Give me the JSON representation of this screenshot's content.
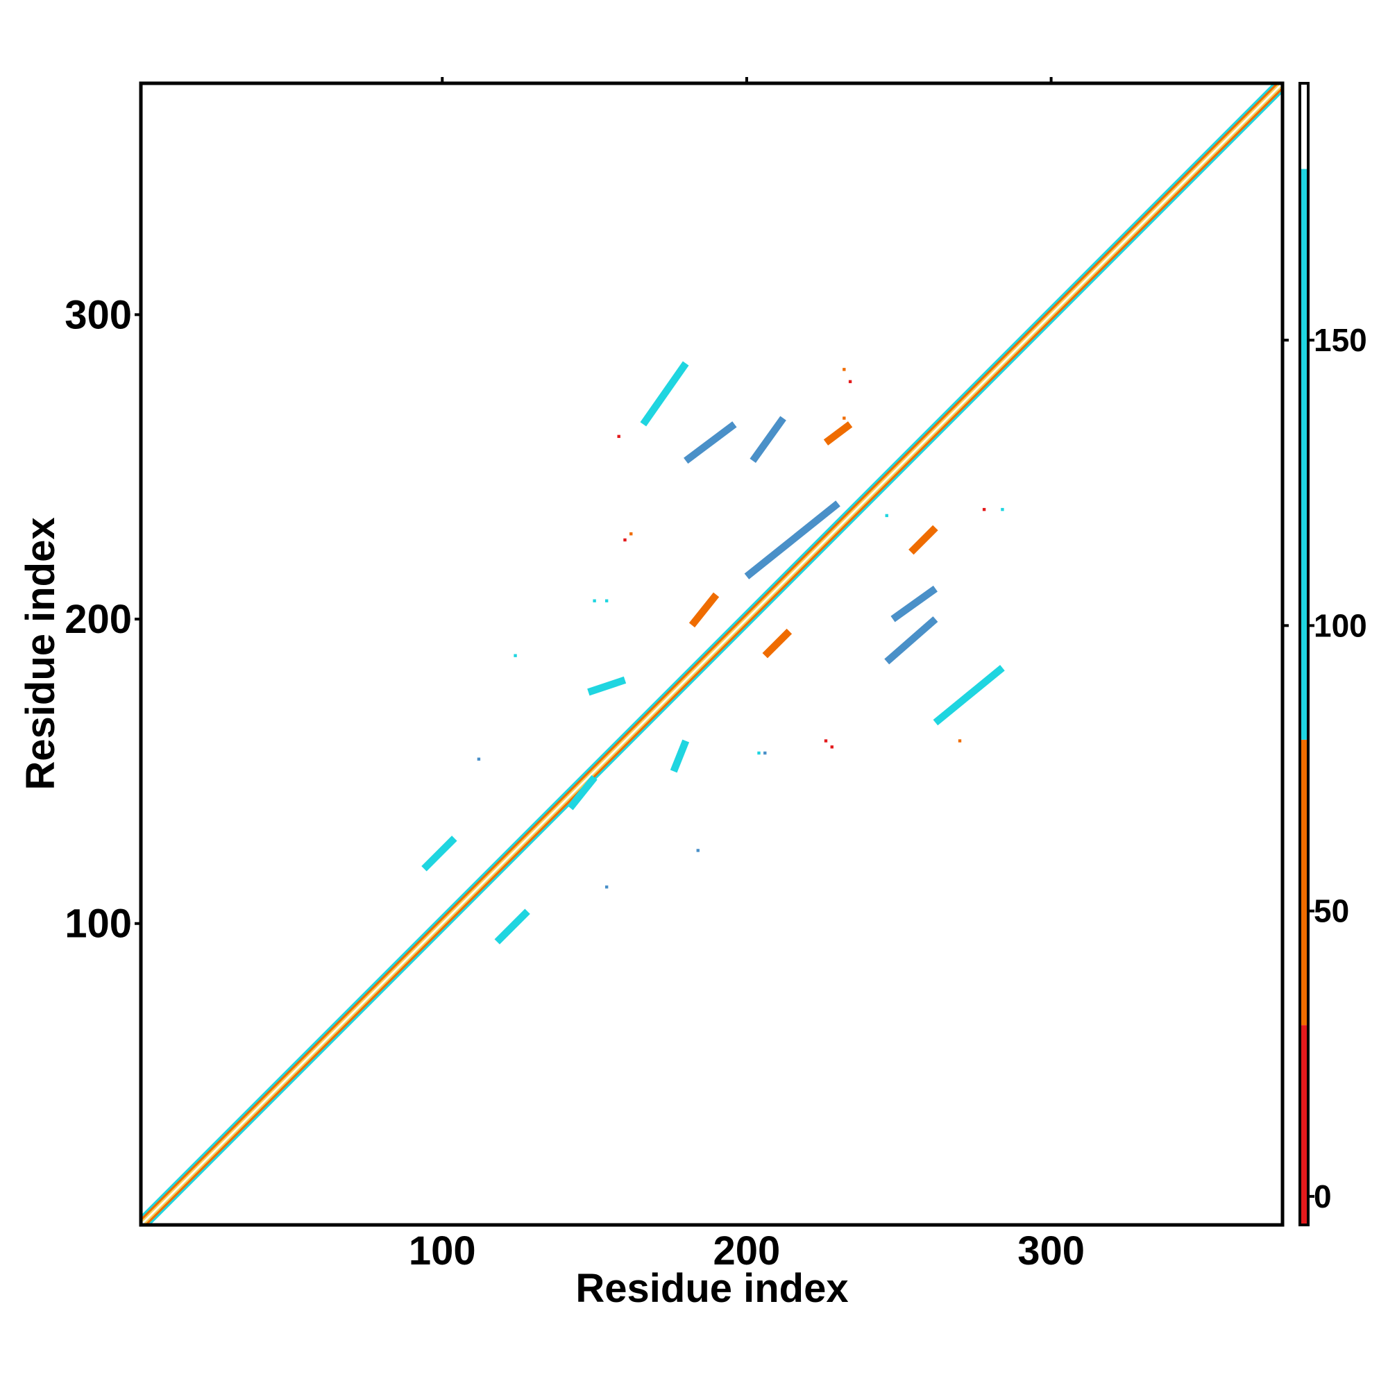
{
  "chart_data": {
    "type": "heatmap",
    "title": "",
    "xlabel": "Residue index",
    "ylabel": "Residue index",
    "xlim": [
      1,
      376
    ],
    "ylim": [
      1,
      376
    ],
    "x_ticks": [
      100,
      200,
      300
    ],
    "y_ticks": [
      100,
      200,
      300
    ],
    "grid": false,
    "colorbar": {
      "ticks": [
        0,
        50,
        100,
        150
      ],
      "range": [
        -5,
        195
      ],
      "bands": [
        {
          "from": -5,
          "to": 30,
          "color": "#e31a1c"
        },
        {
          "from": 30,
          "to": 80,
          "color": "#ef6c00"
        },
        {
          "from": 80,
          "to": 180,
          "color": "#1fd5e0"
        },
        {
          "from": 180,
          "to": 195,
          "color": "#ffffff"
        }
      ]
    },
    "diagonal_pattern": [
      {
        "offset": 0,
        "color": "#f4d35e"
      },
      {
        "offset": 1,
        "color": "#ef6c00"
      },
      {
        "offset": 2,
        "color": "#1fd5e0"
      }
    ],
    "segments": [
      {
        "x1": 202,
        "y1": 252,
        "x2": 212,
        "y2": 266,
        "color": "#4a90c8"
      },
      {
        "x1": 180,
        "y1": 252,
        "x2": 196,
        "y2": 264,
        "color": "#4a90c8"
      },
      {
        "x1": 166,
        "y1": 264,
        "x2": 180,
        "y2": 284,
        "color": "#1fd5e0"
      },
      {
        "x1": 200,
        "y1": 214,
        "x2": 230,
        "y2": 238,
        "color": "#4a90c8"
      },
      {
        "x1": 248,
        "y1": 200,
        "x2": 262,
        "y2": 210,
        "color": "#4a90c8"
      },
      {
        "x1": 246,
        "y1": 186,
        "x2": 262,
        "y2": 200,
        "color": "#4a90c8"
      },
      {
        "x1": 262,
        "y1": 166,
        "x2": 284,
        "y2": 184,
        "color": "#1fd5e0"
      },
      {
        "x1": 182,
        "y1": 198,
        "x2": 190,
        "y2": 208,
        "color": "#ef6c00"
      },
      {
        "x1": 206,
        "y1": 188,
        "x2": 214,
        "y2": 196,
        "color": "#ef6c00"
      },
      {
        "x1": 254,
        "y1": 222,
        "x2": 262,
        "y2": 230,
        "color": "#ef6c00"
      },
      {
        "x1": 226,
        "y1": 258,
        "x2": 234,
        "y2": 264,
        "color": "#ef6c00"
      },
      {
        "x1": 94,
        "y1": 118,
        "x2": 104,
        "y2": 128,
        "color": "#1fd5e0"
      },
      {
        "x1": 118,
        "y1": 94,
        "x2": 128,
        "y2": 104,
        "color": "#1fd5e0"
      },
      {
        "x1": 142,
        "y1": 138,
        "x2": 150,
        "y2": 148,
        "color": "#1fd5e0"
      },
      {
        "x1": 148,
        "y1": 176,
        "x2": 160,
        "y2": 180,
        "color": "#1fd5e0"
      },
      {
        "x1": 176,
        "y1": 150,
        "x2": 180,
        "y2": 160,
        "color": "#1fd5e0"
      }
    ],
    "points": [
      {
        "x": 232,
        "y": 282,
        "color": "#ef6c00"
      },
      {
        "x": 234,
        "y": 278,
        "color": "#e31a1c"
      },
      {
        "x": 158,
        "y": 260,
        "color": "#e31a1c"
      },
      {
        "x": 232,
        "y": 266,
        "color": "#ef6c00"
      },
      {
        "x": 162,
        "y": 228,
        "color": "#ef6c00"
      },
      {
        "x": 160,
        "y": 226,
        "color": "#e31a1c"
      },
      {
        "x": 278,
        "y": 236,
        "color": "#e31a1c"
      },
      {
        "x": 284,
        "y": 236,
        "color": "#1fd5e0"
      },
      {
        "x": 150,
        "y": 206,
        "color": "#1fd5e0"
      },
      {
        "x": 154,
        "y": 206,
        "color": "#1fd5e0"
      },
      {
        "x": 204,
        "y": 156,
        "color": "#1fd5e0"
      },
      {
        "x": 206,
        "y": 156,
        "color": "#4a90c8"
      },
      {
        "x": 226,
        "y": 160,
        "color": "#e31a1c"
      },
      {
        "x": 228,
        "y": 158,
        "color": "#e31a1c"
      },
      {
        "x": 124,
        "y": 188,
        "color": "#1fd5e0"
      },
      {
        "x": 112,
        "y": 154,
        "color": "#4a90c8"
      },
      {
        "x": 184,
        "y": 124,
        "color": "#4a90c8"
      },
      {
        "x": 154,
        "y": 112,
        "color": "#4a90c8"
      },
      {
        "x": 270,
        "y": 160,
        "color": "#ef6c00"
      },
      {
        "x": 246,
        "y": 234,
        "color": "#1fd5e0"
      }
    ]
  }
}
